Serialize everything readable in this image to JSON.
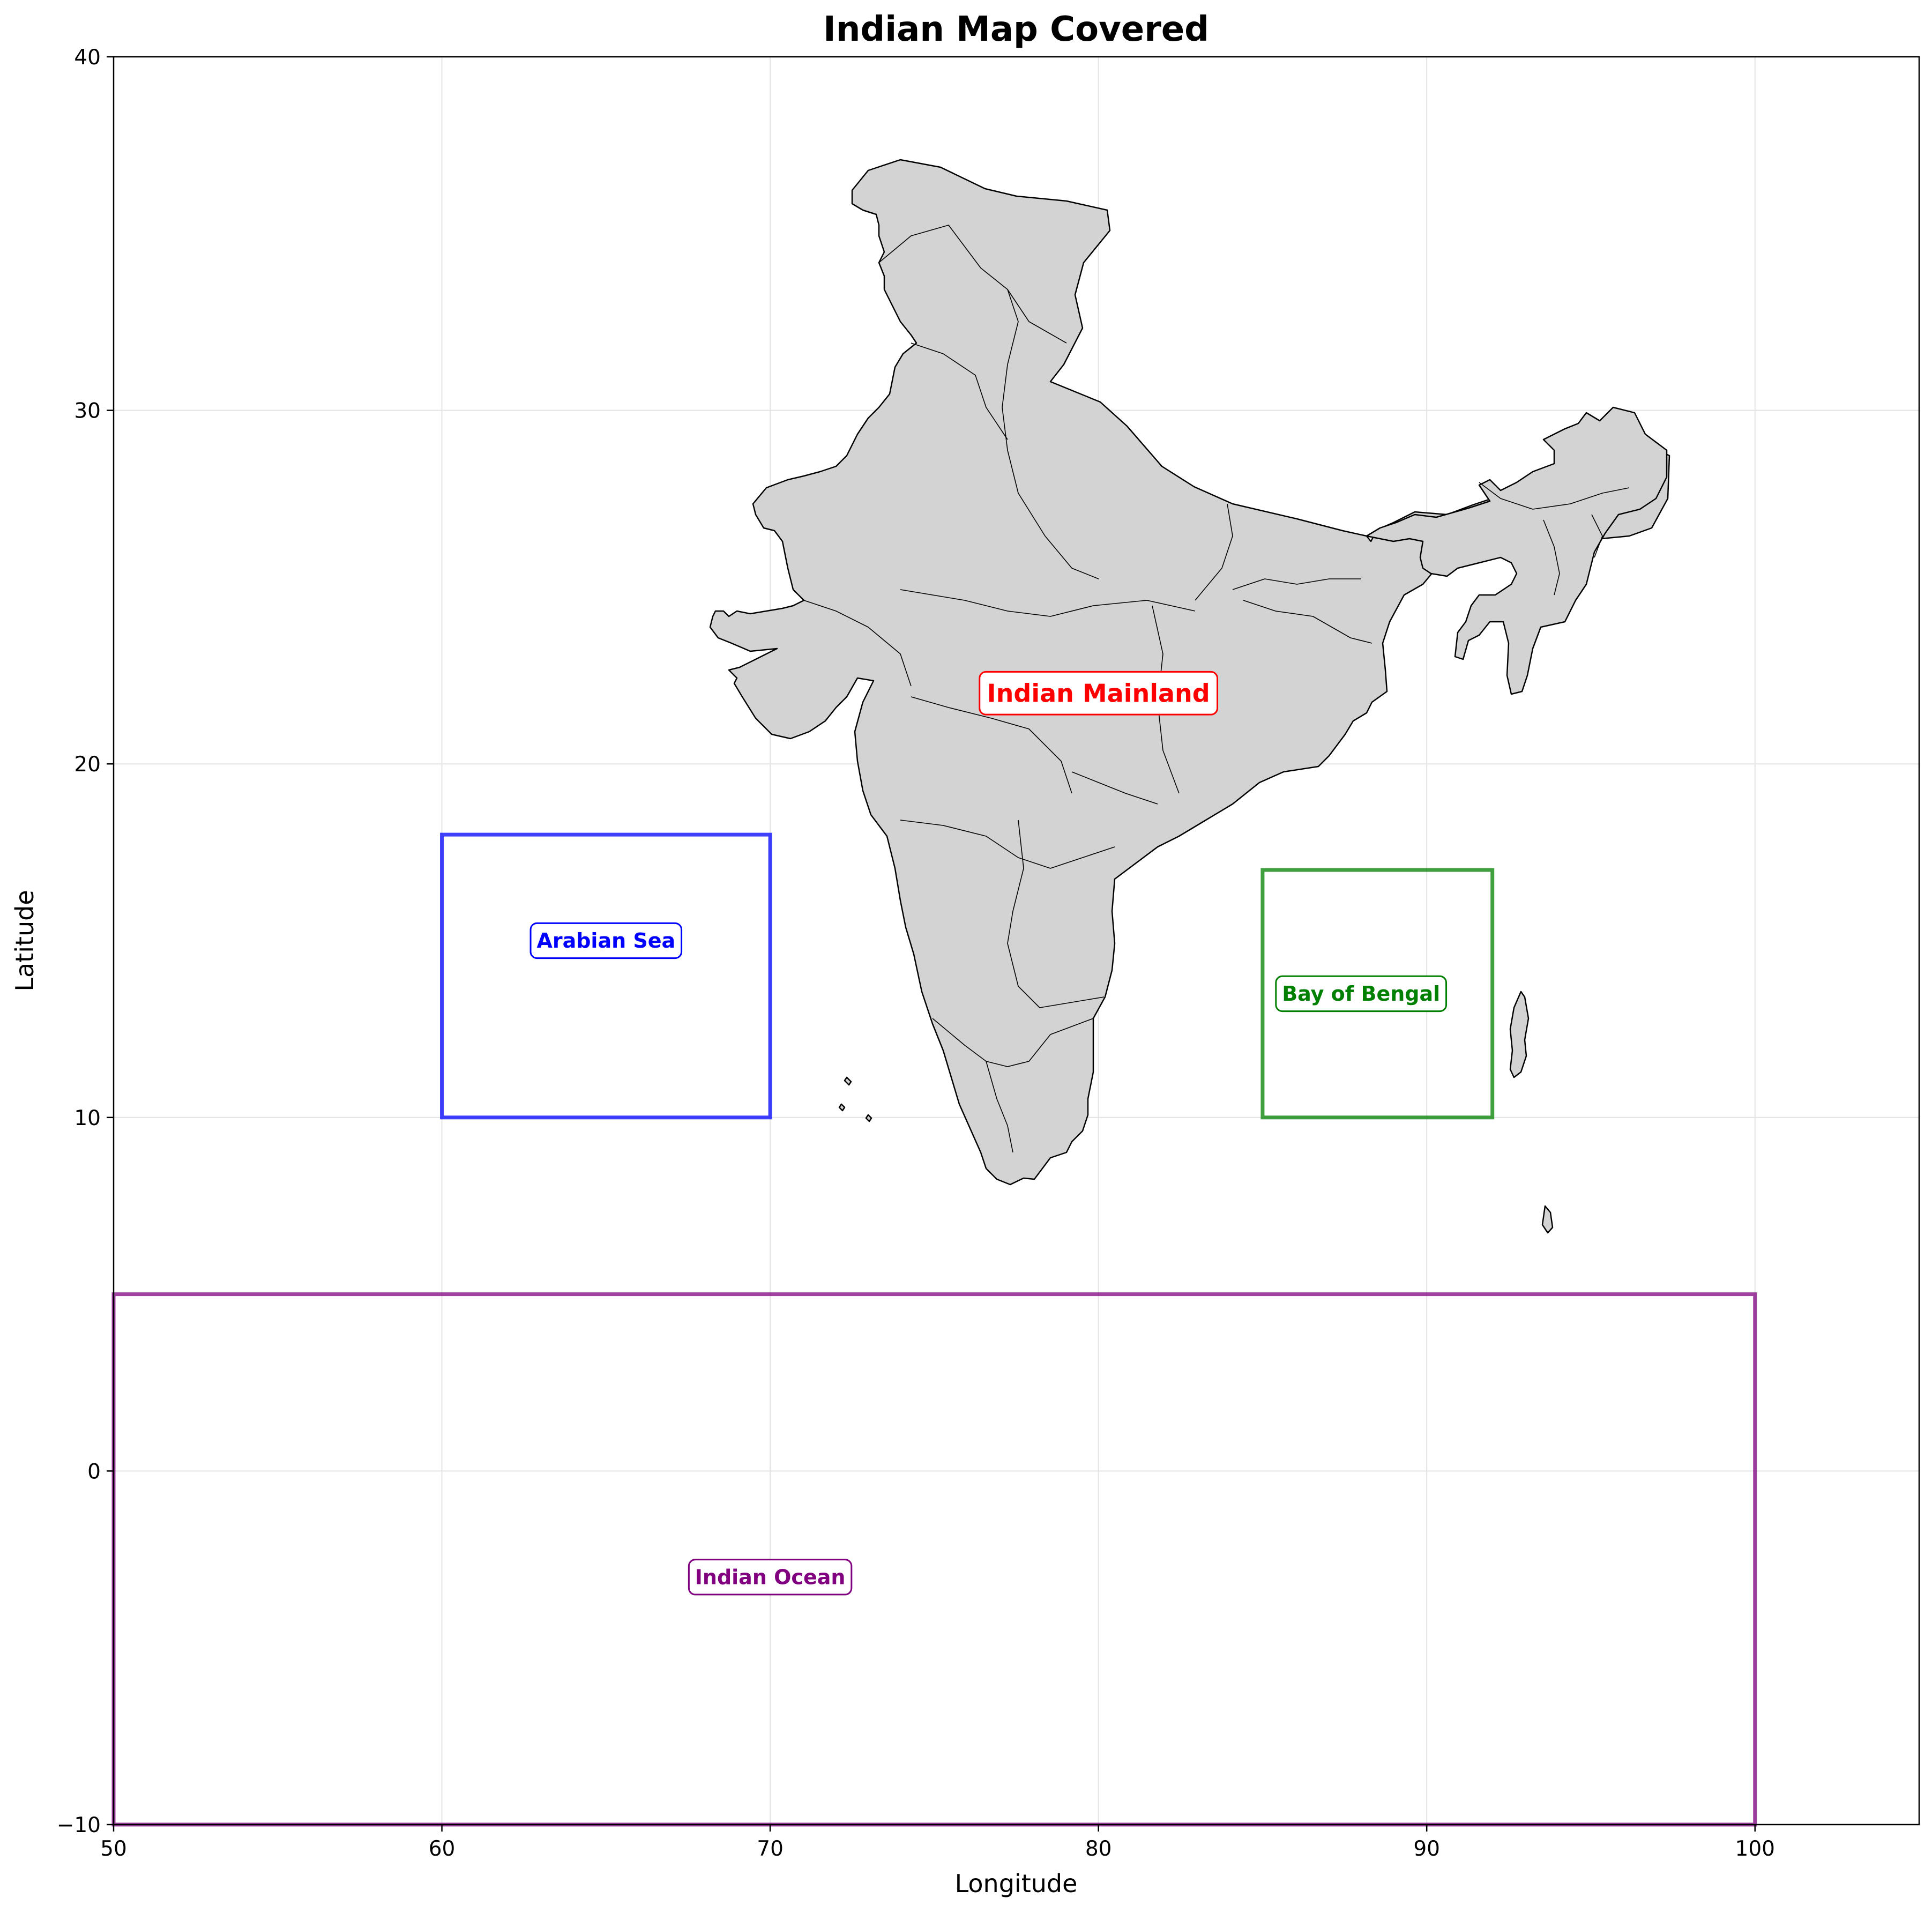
{
  "chart_data": {
    "type": "map",
    "title": "Indian Map Covered",
    "xlabel": "Longitude",
    "ylabel": "Latitude",
    "xlim": [
      50,
      105
    ],
    "ylim": [
      -10,
      40
    ],
    "xticks": [
      50,
      60,
      70,
      80,
      90,
      100
    ],
    "yticks": [
      -10,
      0,
      10,
      20,
      30,
      40
    ],
    "grid": true,
    "land_color": "#d3d3d3",
    "regions": [
      {
        "id": "arabian-sea",
        "label": "Arabian Sea",
        "lon": [
          60,
          70
        ],
        "lat": [
          10,
          18
        ],
        "label_at": [
          65,
          15
        ],
        "color": "#0000ff",
        "label_size": 38
      },
      {
        "id": "bay-of-bengal",
        "label": "Bay of Bengal",
        "lon": [
          85,
          92
        ],
        "lat": [
          10,
          17
        ],
        "label_at": [
          88,
          13.5
        ],
        "color": "#008000",
        "label_size": 38
      },
      {
        "id": "indian-ocean",
        "label": "Indian Ocean",
        "lon": [
          50,
          100
        ],
        "lat": [
          -10,
          5
        ],
        "label_at": [
          70,
          -3
        ],
        "color": "#800080",
        "label_size": 38
      }
    ],
    "annotations": [
      {
        "id": "indian-mainland",
        "label": "Indian Mainland",
        "at": [
          80,
          22
        ],
        "color": "#ff0000",
        "label_size": 46
      }
    ]
  }
}
